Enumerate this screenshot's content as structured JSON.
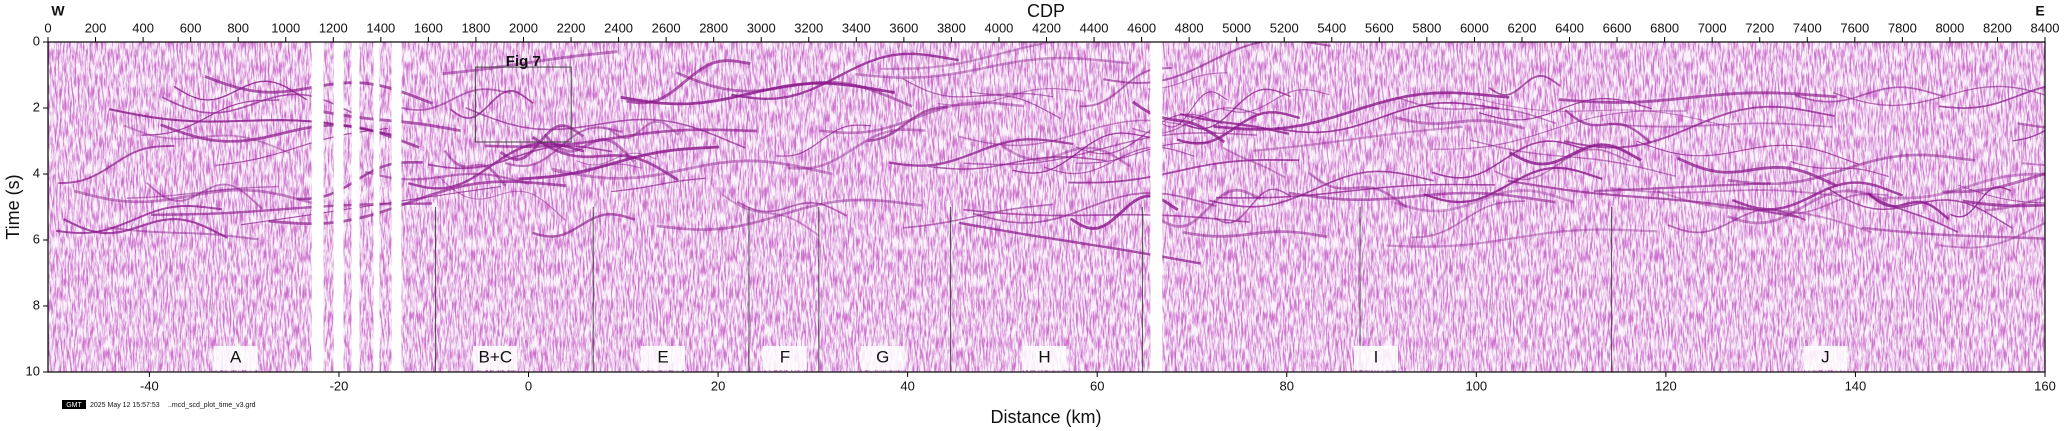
{
  "chart_data": {
    "type": "seismic-section",
    "title": "CDP",
    "xlabel": "Distance (km)",
    "ylabel": "Time (s)",
    "xlim": [
      0,
      8400
    ],
    "xticks": [
      0,
      200,
      400,
      600,
      800,
      1000,
      1200,
      1400,
      1600,
      1800,
      2000,
      2200,
      2400,
      2600,
      2800,
      3000,
      3200,
      3400,
      3600,
      3800,
      4000,
      4200,
      4400,
      4600,
      4800,
      5000,
      5200,
      5400,
      5600,
      5800,
      6000,
      6200,
      6400,
      6600,
      6800,
      7000,
      7200,
      7400,
      7600,
      7800,
      8000,
      8200,
      8400
    ],
    "x2lim": [
      -50.7,
      160
    ],
    "x2ticks": [
      -40,
      -20,
      0,
      20,
      40,
      60,
      80,
      100,
      120,
      140,
      160
    ],
    "ylim": [
      0,
      10
    ],
    "yticks": [
      0,
      2,
      4,
      6,
      8,
      10
    ],
    "y_inverted": true,
    "annotations": {
      "west": "W",
      "east": "E",
      "box": "Fig 7",
      "zones": [
        "A",
        "B+C",
        "E",
        "F",
        "G",
        "H",
        "I",
        "J"
      ]
    },
    "footer": [
      "GMT",
      "2025 May 12 15:57:53",
      "..mcd_scd_plot_time_v3.grd"
    ],
    "color": "#8b1a8b"
  }
}
